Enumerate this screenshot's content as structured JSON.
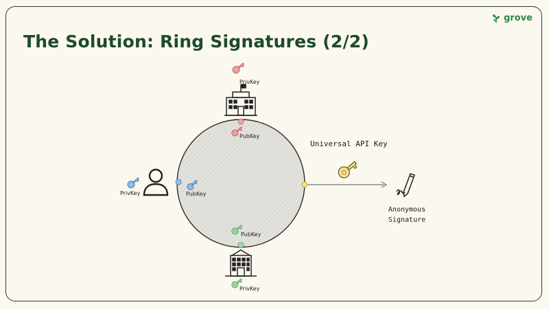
{
  "slide": {
    "title": "The Solution: Ring Signatures (2/2)"
  },
  "brand": {
    "logo_text": "grove",
    "color": "#2e8a45"
  },
  "diagram": {
    "top_node": {
      "icon": "government-building-icon",
      "key_label": "PrivKey",
      "pub_label": "PubKey",
      "color": "#e48a8a"
    },
    "left_node": {
      "icon": "person-icon",
      "key_label": "PrivKey",
      "pub_label": "PubKey",
      "color": "#6fa3d8"
    },
    "bottom_node": {
      "icon": "office-building-icon",
      "key_label": "PrivKey",
      "pub_label": "PubKey",
      "color": "#6fbf7d"
    },
    "output": {
      "key_label": "Universal API Key",
      "key_color": "#f2d466",
      "signature_label_line1": "Anonymous",
      "signature_label_line2": "Signature",
      "signature_icon": "pen-signature-icon"
    }
  }
}
